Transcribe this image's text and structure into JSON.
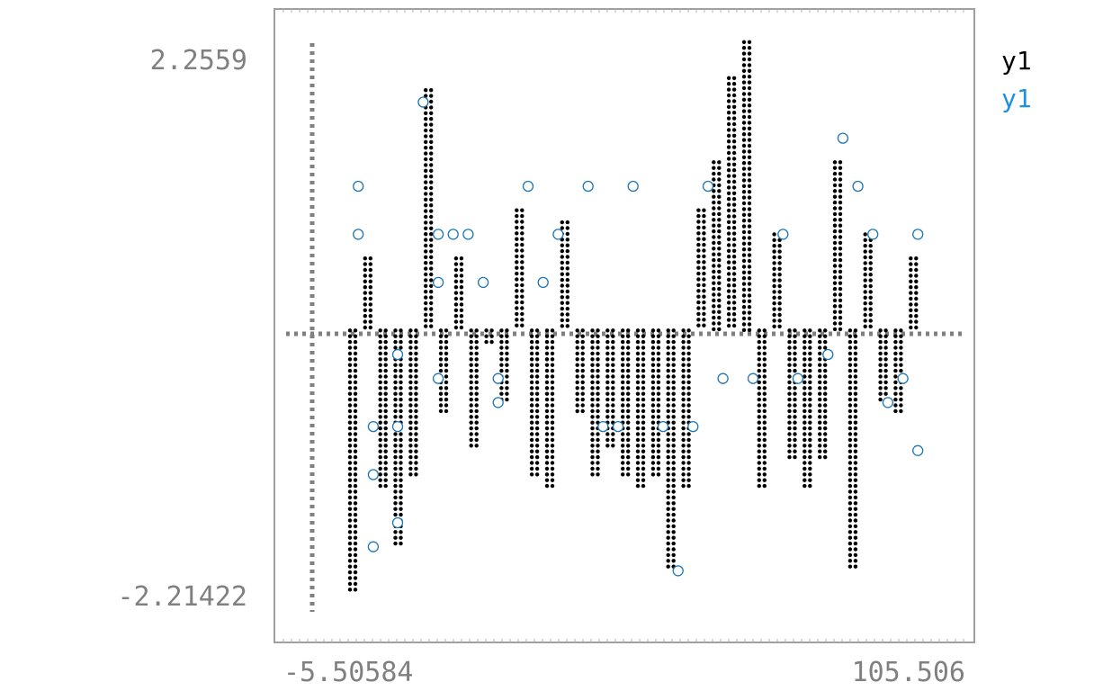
{
  "chart_data": {
    "type": "scatter",
    "title": "",
    "xlabel": "",
    "ylabel": "",
    "xlim": [
      -5.50584,
      105.506
    ],
    "ylim": [
      -2.21422,
      2.2559
    ],
    "x_tick_labels": [
      "-5.50584",
      "105.506"
    ],
    "y_tick_labels": [
      "2.2559",
      "-2.21422"
    ],
    "legend": {
      "placement": "top-right",
      "entries": [
        "y1",
        "y1"
      ]
    },
    "grid": false,
    "axes_color": "#808080",
    "series": [
      {
        "name": "y1",
        "marker": "braille-dot",
        "color": "#000000",
        "x": [
          0,
          2.73,
          5.46,
          8.19,
          10.92,
          13.65,
          16.38,
          19.11,
          21.84,
          24.57,
          27.3,
          30.03,
          32.76,
          35.49,
          38.22,
          40.95,
          43.68,
          46.41,
          49.14,
          51.87,
          54.6,
          57.33,
          60.06,
          62.79,
          65.52,
          68.25,
          70.98,
          73.71,
          76.44,
          79.17,
          81.9,
          84.63,
          87.36,
          90.09,
          92.82,
          95.55,
          98.28,
          101.01
        ],
        "y": [
          -2.2,
          0.6,
          -1.3,
          -1.8,
          -1.2,
          2.0,
          -0.7,
          0.6,
          -1.0,
          -0.1,
          -0.6,
          1.0,
          -1.2,
          -1.3,
          0.9,
          -0.7,
          -1.2,
          -1.0,
          -1.2,
          -1.3,
          -1.2,
          -2.0,
          -1.3,
          1.0,
          1.4,
          2.1,
          2.4,
          -1.3,
          0.8,
          -1.1,
          -1.3,
          -1.1,
          1.4,
          -2.0,
          0.8,
          -0.6,
          -0.7,
          0.6
        ]
      },
      {
        "name": "y1",
        "marker": "open-circle",
        "color": "#1f77b4",
        "x": [
          1.5,
          1.5,
          4.2,
          4.2,
          4.2,
          8.6,
          8.6,
          8.6,
          13.2,
          15.9,
          15.9,
          15.9,
          18.6,
          21.3,
          24.0,
          26.7,
          26.7,
          32.1,
          34.8,
          37.5,
          42.9,
          45.6,
          48.3,
          51.0,
          56.4,
          59.1,
          61.8,
          64.5,
          67.2,
          72.6,
          78.0,
          80.7,
          86.1,
          88.8,
          91.5,
          94.2,
          96.9,
          99.6,
          102.3,
          102.3
        ],
        "y": [
          1.2,
          0.8,
          -0.8,
          -1.2,
          -1.8,
          -0.8,
          -0.2,
          -1.6,
          1.9,
          0.8,
          0.4,
          -0.4,
          0.8,
          0.8,
          0.4,
          -0.4,
          -0.6,
          1.2,
          0.4,
          0.8,
          1.2,
          -0.8,
          -0.8,
          1.2,
          -0.8,
          -2.0,
          -0.8,
          1.2,
          -0.4,
          -0.4,
          0.8,
          -0.4,
          -0.2,
          1.6,
          1.2,
          0.8,
          -0.6,
          -0.4,
          0.8,
          -1.0
        ]
      }
    ]
  }
}
